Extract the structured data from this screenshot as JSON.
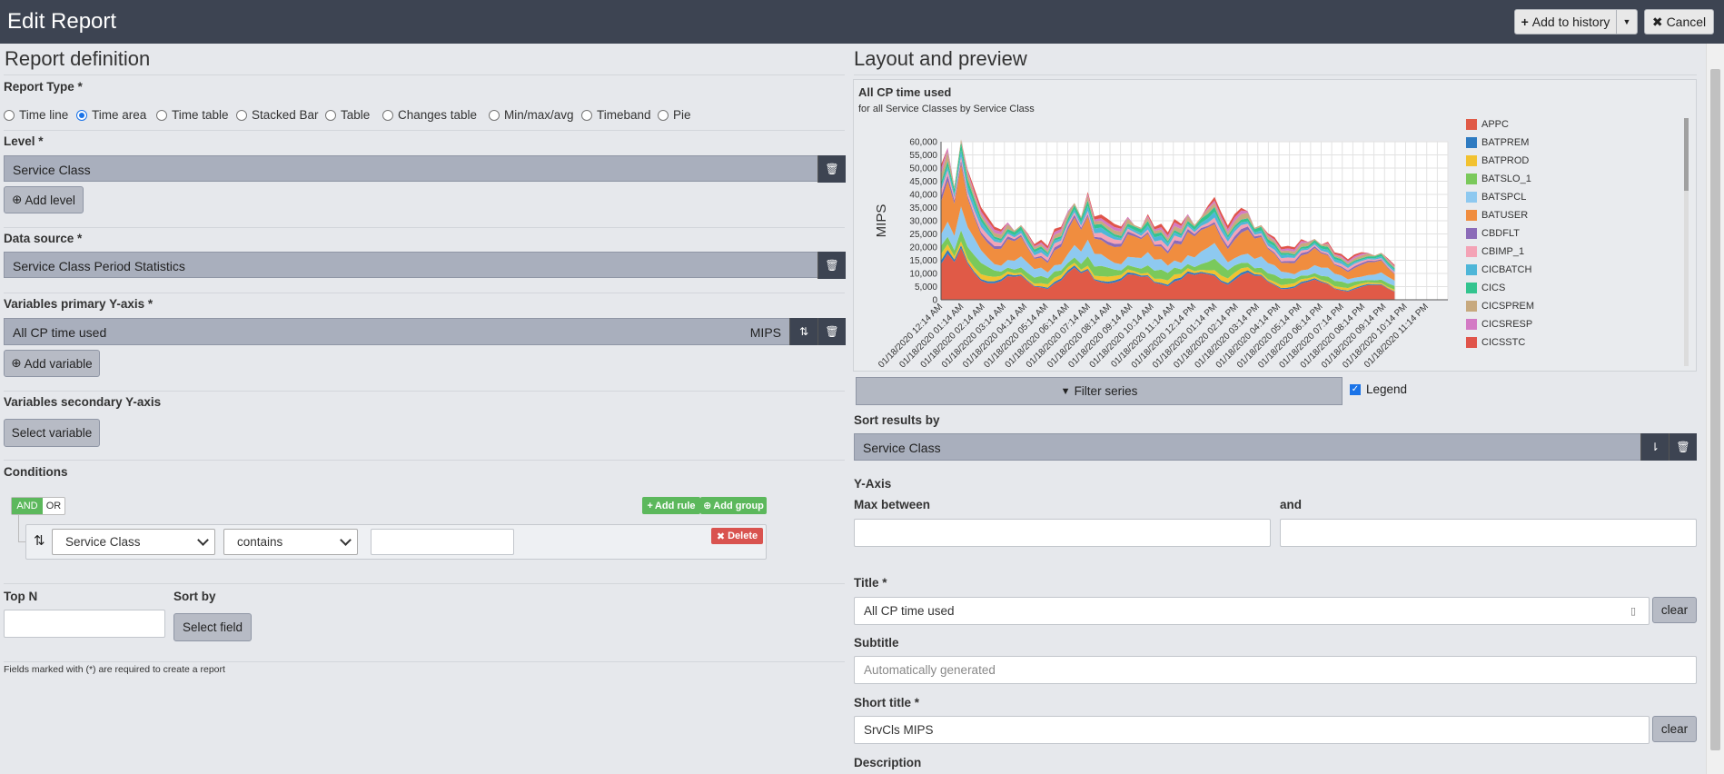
{
  "header": {
    "title": "Edit Report",
    "add_history": "Add to history",
    "cancel": "Cancel"
  },
  "left": {
    "heading": "Report definition",
    "report_type_label": "Report Type *",
    "report_types": [
      "Time line",
      "Time area",
      "Time table",
      "Stacked Bar",
      "Table",
      "Changes table",
      "Min/max/avg",
      "Timeband",
      "Pie"
    ],
    "report_type_selected": "Time area",
    "level_label": "Level *",
    "level_value": "Service Class",
    "add_level": "Add level",
    "data_source_label": "Data source *",
    "data_source_value": "Service Class Period Statistics",
    "primary_y_label": "Variables primary Y-axis *",
    "primary_var_value": "All CP time used",
    "primary_var_unit": "MIPS",
    "add_variable": "Add variable",
    "secondary_y_label": "Variables secondary Y-axis",
    "select_variable": "Select variable",
    "conditions_label": "Conditions",
    "and_label": "AND",
    "or_label": "OR",
    "add_rule": "Add rule",
    "add_group": "Add group",
    "condition_field": "Service Class",
    "condition_operator": "contains",
    "condition_value": "",
    "delete": "Delete",
    "top_n_label": "Top N",
    "top_n_value": "",
    "sort_by_label": "Sort by",
    "select_field": "Select field",
    "note": "Fields marked with (*) are required to create a report"
  },
  "right": {
    "heading": "Layout and preview",
    "filter_series": "Filter series",
    "legend_label": "Legend",
    "legend_checked": true,
    "sort_results_label": "Sort results by",
    "sort_results_value": "Service Class",
    "y_axis_label": "Y-Axis",
    "max_between_label": "Max between",
    "and_label": "and",
    "max_between_value": "",
    "and_value": "",
    "title_label": "Title *",
    "title_value": "All CP time used",
    "clear": "clear",
    "subtitle_label": "Subtitle",
    "subtitle_placeholder": "Automatically generated",
    "short_title_label": "Short title *",
    "short_title_value": "SrvCls MIPS",
    "description_label": "Description"
  },
  "chart_data": {
    "type": "area",
    "title": "All CP time used",
    "subtitle": "for all Service Classes by Service Class",
    "ylabel": "MIPS",
    "ylim": [
      0,
      60000
    ],
    "yticks": [
      "0",
      "5,000",
      "10,000",
      "15,000",
      "20,000",
      "25,000",
      "30,000",
      "35,000",
      "40,000",
      "45,000",
      "50,000",
      "55,000",
      "60,000"
    ],
    "x_ticks": [
      "01/18/2020 12:14 AM",
      "01/18/2020 01:14 AM",
      "01/18/2020 02:14 AM",
      "01/18/2020 03:14 AM",
      "01/18/2020 04:14 AM",
      "01/18/2020 05:14 AM",
      "01/18/2020 06:14 AM",
      "01/18/2020 07:14 AM",
      "01/18/2020 08:14 AM",
      "01/18/2020 09:14 AM",
      "01/18/2020 10:14 AM",
      "01/18/2020 11:14 AM",
      "01/18/2020 12:14 PM",
      "01/18/2020 01:14 PM",
      "01/18/2020 02:14 PM",
      "01/18/2020 03:14 PM",
      "01/18/2020 04:14 PM",
      "01/18/2020 05:14 PM",
      "01/18/2020 06:14 PM",
      "01/18/2020 07:14 PM",
      "01/18/2020 08:14 PM",
      "01/18/2020 09:14 PM",
      "01/18/2020 10:14 PM",
      "01/18/2020 11:14 PM"
    ],
    "totals": [
      52000,
      55000,
      41000,
      58000,
      47000,
      44000,
      40000,
      37000,
      31000,
      27000,
      28000,
      25000,
      27000,
      24000,
      22000,
      26000,
      24000,
      30000,
      28000,
      32000,
      35000,
      30000,
      39000,
      33000,
      37000,
      36000,
      32000,
      28000,
      30000,
      27000,
      26000,
      31000,
      29000,
      33000,
      30000,
      34000,
      29000,
      31000,
      27000,
      30000,
      34000,
      41000,
      38000,
      33000,
      36000,
      35000,
      32000,
      26000,
      27000,
      24000,
      25000,
      23000,
      24000,
      22000,
      23000,
      21000,
      22000,
      20000,
      21000,
      19000,
      20000,
      18000,
      19000,
      18000,
      17000,
      16000,
      17000,
      15000,
      14000
    ],
    "series": [
      {
        "name": "APPC",
        "color": "#e05a47",
        "share": 0.26
      },
      {
        "name": "BATPREM",
        "color": "#2f7bc1",
        "share": 0.02
      },
      {
        "name": "BATPROD",
        "color": "#f2c230",
        "share": 0.04
      },
      {
        "name": "BATSLO_1",
        "color": "#7ac95b",
        "share": 0.08
      },
      {
        "name": "BATSPCL",
        "color": "#8ec9f0",
        "share": 0.12
      },
      {
        "name": "BATUSER",
        "color": "#f08d3f",
        "share": 0.22
      },
      {
        "name": "CBDFLT",
        "color": "#8b6bb8",
        "share": 0.03
      },
      {
        "name": "CBIMP_1",
        "color": "#f4a3b6",
        "share": 0.04
      },
      {
        "name": "CICBATCH",
        "color": "#4eb6d8",
        "share": 0.04
      },
      {
        "name": "CICS",
        "color": "#33c48f",
        "share": 0.04
      },
      {
        "name": "CICSPREM",
        "color": "#c7a97e",
        "share": 0.05
      },
      {
        "name": "CICSRESP",
        "color": "#d37ac4",
        "share": 0.03
      },
      {
        "name": "CICSSTC",
        "color": "#e0544a",
        "share": 0.03
      }
    ]
  }
}
